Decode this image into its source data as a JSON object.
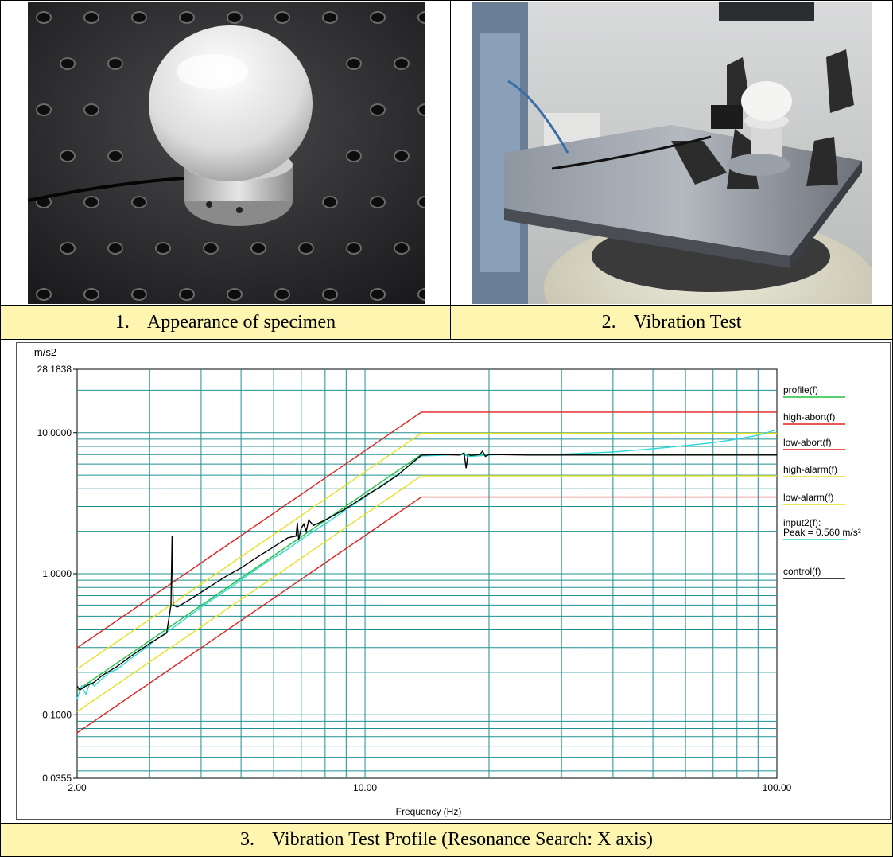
{
  "photos": [
    {
      "caption_number": "1.",
      "caption_text": "Appearance of specimen",
      "icon": "specimen-photo"
    },
    {
      "caption_number": "2.",
      "caption_text": "Vibration Test",
      "icon": "vibration-test-photo"
    }
  ],
  "chart_caption": {
    "number": "3.",
    "text": "Vibration Test Profile (Resonance Search: X axis)"
  },
  "chart_data": {
    "type": "line",
    "xlabel": "Frequency (Hz)",
    "ylabel": "m/s2",
    "xscale": "log",
    "yscale": "log",
    "xlim": [
      2,
      100
    ],
    "ylim": [
      0.0355,
      28.1838
    ],
    "x_tick_labels": [
      "2.00",
      "10.00",
      "100.00"
    ],
    "x_ticks": [
      2,
      10,
      100
    ],
    "y_tick_labels": [
      "0.0355",
      "0.1000",
      "1.0000",
      "10.0000",
      "28.1838"
    ],
    "y_ticks": [
      0.0355,
      0.1,
      1.0,
      10.0,
      28.1838
    ],
    "grid": true,
    "legend_placement": "right",
    "grid_color": "#1f9090",
    "series": [
      {
        "name": "profile(f)",
        "color": "#22c040",
        "x": [
          2,
          13.7,
          100
        ],
        "y": [
          0.149,
          7.0,
          7.0
        ]
      },
      {
        "name": "high-abort(f)",
        "color": "#e02020",
        "x": [
          2,
          13.7,
          100
        ],
        "y": [
          0.298,
          14.0,
          14.0
        ]
      },
      {
        "name": "low-abort(f)",
        "color": "#e02020",
        "x": [
          2,
          13.7,
          100
        ],
        "y": [
          0.0745,
          3.5,
          3.5
        ]
      },
      {
        "name": "high-alarm(f)",
        "color": "#e8e020",
        "x": [
          2,
          13.7,
          100
        ],
        "y": [
          0.211,
          9.9,
          9.9
        ]
      },
      {
        "name": "low-alarm(f)",
        "color": "#e8e020",
        "x": [
          2,
          13.7,
          100
        ],
        "y": [
          0.105,
          4.95,
          4.95
        ]
      },
      {
        "name": "input2(f):",
        "legend_extra": "Peak = 0.560 m/s²",
        "color": "#30d8d8",
        "x": [
          2.0,
          2.05,
          2.1,
          2.15,
          2.2,
          2.3,
          2.4,
          2.5,
          2.7,
          2.9,
          3.1,
          3.4,
          3.7,
          4.0,
          4.4,
          4.8,
          5.3,
          5.8,
          6.4,
          7.0,
          7.5,
          8.0,
          9.0,
          10.0,
          11.0,
          12.0,
          13.7,
          15.0,
          17.0,
          18.0,
          20.0,
          22.0,
          25.0,
          30.0,
          40.0,
          50.0,
          60.0,
          70.0,
          80.0,
          90.0,
          100.0
        ],
        "y": [
          0.13,
          0.16,
          0.14,
          0.17,
          0.16,
          0.18,
          0.2,
          0.21,
          0.25,
          0.29,
          0.34,
          0.41,
          0.49,
          0.58,
          0.7,
          0.83,
          1.02,
          1.22,
          1.45,
          1.75,
          2.0,
          2.25,
          2.85,
          3.5,
          4.25,
          5.05,
          6.85,
          6.9,
          7.05,
          6.8,
          6.95,
          7.0,
          7.0,
          7.05,
          7.3,
          7.7,
          8.1,
          8.5,
          9.0,
          9.6,
          10.5
        ]
      },
      {
        "name": "control(f)",
        "color": "#000000",
        "x": [
          2.0,
          2.03,
          2.1,
          2.2,
          2.3,
          2.5,
          2.7,
          3.0,
          3.3,
          3.38,
          3.4,
          3.42,
          3.5,
          3.8,
          4.2,
          4.6,
          5.0,
          5.5,
          6.0,
          6.5,
          6.8,
          6.85,
          6.9,
          7.0,
          7.1,
          7.2,
          7.3,
          7.5,
          8.0,
          9.0,
          10.0,
          11.0,
          12.0,
          13.7,
          15.0,
          17.0,
          17.4,
          17.6,
          17.8,
          18.0,
          19.0,
          19.3,
          19.6,
          20.0,
          25.0,
          40.0,
          60.0,
          100.0
        ],
        "y": [
          0.16,
          0.15,
          0.16,
          0.17,
          0.19,
          0.22,
          0.26,
          0.32,
          0.38,
          0.6,
          1.85,
          0.6,
          0.58,
          0.67,
          0.81,
          0.96,
          1.1,
          1.32,
          1.55,
          1.8,
          1.85,
          2.3,
          1.75,
          2.1,
          2.25,
          2.0,
          2.4,
          2.2,
          2.4,
          2.9,
          3.55,
          4.2,
          5.0,
          6.95,
          7.0,
          6.95,
          7.2,
          5.6,
          7.1,
          6.9,
          7.0,
          7.4,
          6.8,
          7.0,
          6.95,
          6.95,
          6.95,
          6.95
        ]
      }
    ]
  }
}
